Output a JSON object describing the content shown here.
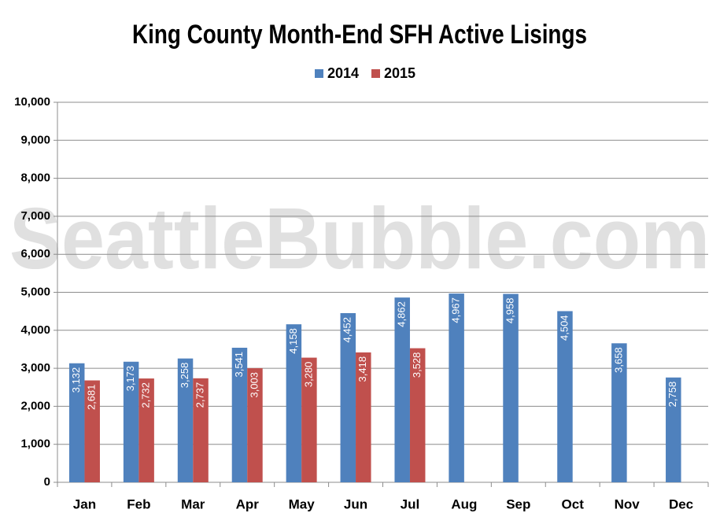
{
  "chart_data": {
    "type": "bar",
    "title": "King County Month-End SFH Active Lisings",
    "watermark": "SeattleBubble.com",
    "categories": [
      "Jan",
      "Feb",
      "Mar",
      "Apr",
      "May",
      "Jun",
      "Jul",
      "Aug",
      "Sep",
      "Oct",
      "Nov",
      "Dec"
    ],
    "series": [
      {
        "name": "2014",
        "color": "#4f81bd",
        "values": [
          3132,
          3173,
          3258,
          3541,
          4158,
          4452,
          4862,
          4967,
          4958,
          4504,
          3658,
          2758
        ],
        "value_labels": [
          "3,132",
          "3,173",
          "3,258",
          "3,541",
          "4,158",
          "4,452",
          "4,862",
          "4,967",
          "4,958",
          "4,504",
          "3,658",
          "2,758"
        ]
      },
      {
        "name": "2015",
        "color": "#c0504d",
        "values": [
          2681,
          2732,
          2737,
          3003,
          3280,
          3418,
          3528,
          null,
          null,
          null,
          null,
          null
        ],
        "value_labels": [
          "2,681",
          "2,732",
          "2,737",
          "3,003",
          "3,280",
          "3,418",
          "3,528",
          null,
          null,
          null,
          null,
          null
        ]
      }
    ],
    "ylim": [
      0,
      10000
    ],
    "yticks": [
      0,
      {
        "value": 1000,
        "label": "1,000"
      },
      {
        "value": 2000,
        "label": "2,000"
      },
      {
        "value": 3000,
        "label": "3,000"
      },
      {
        "value": 4000,
        "label": "4,000"
      },
      {
        "value": 5000,
        "label": "5,000"
      },
      {
        "value": 6000,
        "label": "6,000"
      },
      {
        "value": 7000,
        "label": "7,000"
      },
      {
        "value": 8000,
        "label": "8,000"
      },
      {
        "value": 9000,
        "label": "9,000"
      },
      {
        "value": 10000,
        "label": "10,000"
      }
    ],
    "grid": true,
    "legend": "top"
  }
}
